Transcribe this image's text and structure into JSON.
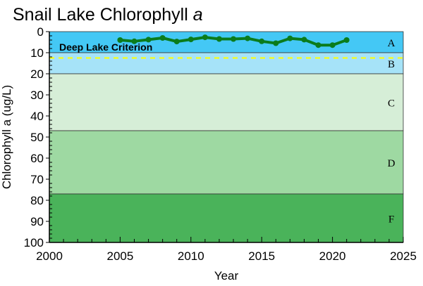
{
  "chart_data": {
    "type": "line",
    "title": "Snail Lake Chlorophyll",
    "title_italic": "a",
    "xlabel": "Year",
    "ylabel": "Chlorophyll a (ug/L)",
    "xlim": [
      2000,
      2025
    ],
    "ylim": [
      0,
      100
    ],
    "y_inverted": true,
    "xticks": [
      "2000",
      "2005",
      "2010",
      "2015",
      "2020",
      "2025"
    ],
    "yticks": [
      "0",
      "10",
      "20",
      "30",
      "40",
      "50",
      "60",
      "70",
      "80",
      "90",
      "100"
    ],
    "bands": [
      {
        "label": "A",
        "from": 0,
        "to": 10,
        "color": "#44c8f5"
      },
      {
        "label": "B",
        "from": 10,
        "to": 20,
        "color": "#a6e3f8"
      },
      {
        "label": "C",
        "from": 20,
        "to": 47,
        "color": "#d6eed7"
      },
      {
        "label": "D",
        "from": 47,
        "to": 77,
        "color": "#9ed9a2"
      },
      {
        "label": "F",
        "from": 77,
        "to": 100,
        "color": "#4ab35a"
      }
    ],
    "criterion": {
      "label": "Deep Lake Criterion",
      "value": 12.5,
      "color": "#ffff00"
    },
    "series": [
      {
        "name": "Chlorophyll a",
        "color": "#0a7c1c",
        "x": [
          2005,
          2006,
          2007,
          2008,
          2009,
          2010,
          2011,
          2012,
          2013,
          2014,
          2015,
          2016,
          2017,
          2018,
          2019,
          2020,
          2021
        ],
        "y": [
          4.0,
          4.6,
          3.8,
          3.0,
          4.7,
          3.7,
          2.7,
          3.5,
          3.5,
          3.2,
          4.6,
          5.5,
          3.2,
          3.8,
          6.4,
          6.4,
          4.0
        ]
      }
    ]
  }
}
